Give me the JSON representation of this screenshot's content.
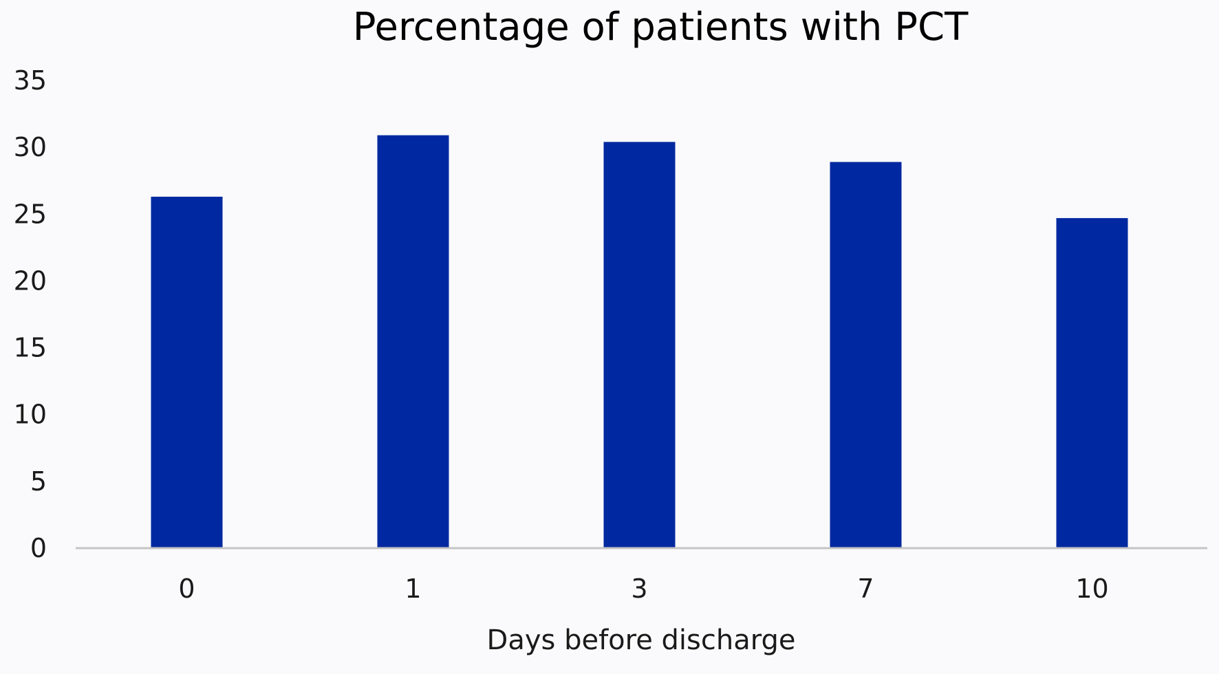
{
  "chart_data": {
    "type": "bar",
    "title": "Percentage of patients with PCT",
    "xlabel": "Days before discharge",
    "ylabel": "",
    "categories": [
      "0",
      "1",
      "3",
      "7",
      "10"
    ],
    "values": [
      26.3,
      30.9,
      30.4,
      28.9,
      24.7
    ],
    "ylim": [
      0,
      35
    ],
    "yticks": [
      0,
      5,
      10,
      15,
      20,
      25,
      30,
      35
    ],
    "grid": false,
    "bar_color": "#0028a0",
    "axis_color": "#c4c4c4",
    "background": "#fafafc"
  }
}
